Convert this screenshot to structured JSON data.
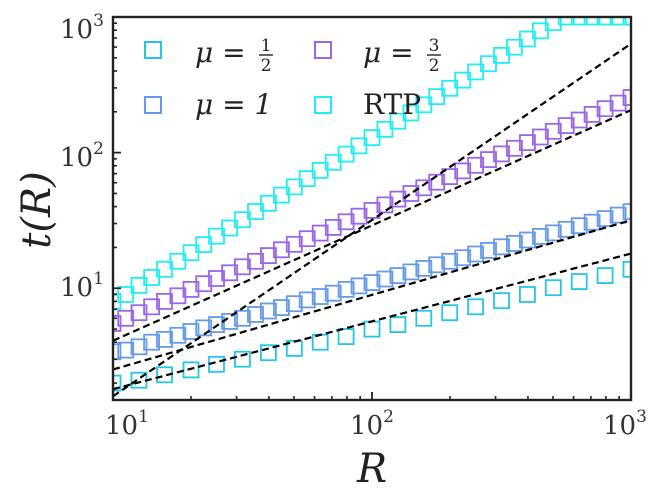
{
  "chart_data": {
    "type": "scatter",
    "xscale": "log",
    "yscale": "log",
    "xlim": [
      10,
      1000
    ],
    "ylim": [
      1.5,
      1000
    ],
    "xlabel": "R",
    "ylabel": "t(R)",
    "xticks": [
      {
        "base": "10",
        "exp": "1",
        "value": 10
      },
      {
        "base": "10",
        "exp": "2",
        "value": 100
      },
      {
        "base": "10",
        "exp": "3",
        "value": 1000
      }
    ],
    "yticks": [
      {
        "base": "10",
        "exp": "1",
        "value": 10
      },
      {
        "base": "10",
        "exp": "2",
        "value": 100
      },
      {
        "base": "10",
        "exp": "3",
        "value": 1000
      }
    ],
    "legend_position": "top-left",
    "series": [
      {
        "key": "mu-half",
        "name": "μ = 1/2",
        "legend": {
          "symbol": "μ =",
          "num": "1",
          "den": "2"
        },
        "color": "#22c7e8",
        "marker": "open-square",
        "fit_prefactor": 0.57,
        "fit_exponent": 0.5,
        "x": [
          10,
          12.6,
          15.8,
          20,
          25.1,
          31.6,
          39.8,
          50.1,
          63.1,
          79.4,
          100,
          125.9,
          158.5,
          199.5,
          251.2,
          316.2,
          398.1,
          501.2,
          631,
          794.3,
          1000
        ],
        "y": [
          2.0,
          2.1,
          2.3,
          2.5,
          2.75,
          3.0,
          3.35,
          3.6,
          4.0,
          4.4,
          5.0,
          5.4,
          6.0,
          6.6,
          7.3,
          8.1,
          9.0,
          10.1,
          11.2,
          12.4,
          13.8
        ]
      },
      {
        "key": "mu-1",
        "name": "μ = 1",
        "legend": {
          "symbol": "μ = 1"
        },
        "color": "#6699e6",
        "marker": "open-square",
        "fit_prefactor": 0.71,
        "fit_exponent": 0.55,
        "x": [
          10,
          11.2,
          12.6,
          14.1,
          15.8,
          17.8,
          20,
          22.4,
          25.1,
          28.2,
          31.6,
          35.5,
          39.8,
          44.7,
          50.1,
          56.2,
          63.1,
          70.8,
          79.4,
          89.1,
          100,
          112.2,
          125.9,
          141.3,
          158.5,
          177.8,
          199.5,
          223.9,
          251.2,
          281.8,
          316.2,
          354.8,
          398.1,
          446.7,
          501.2,
          562.3,
          631,
          707.9,
          794.3,
          891.3,
          1000
        ],
        "y": [
          3.4,
          3.5,
          3.7,
          4.0,
          4.2,
          4.5,
          4.8,
          5.1,
          5.4,
          5.7,
          6.0,
          6.4,
          6.8,
          7.2,
          7.7,
          8.2,
          8.7,
          9.2,
          9.8,
          10.4,
          11.0,
          11.7,
          12.4,
          13.2,
          14.0,
          14.9,
          15.8,
          16.8,
          17.9,
          19.0,
          20.2,
          21.4,
          22.7,
          24.1,
          25.6,
          27.2,
          28.9,
          30.7,
          32.6,
          34.6,
          36.7
        ]
      },
      {
        "key": "mu-3-2",
        "name": "μ = 3/2",
        "legend": {
          "symbol": "μ =",
          "num": "3",
          "den": "2"
        },
        "color": "#9966e6",
        "marker": "open-square",
        "fit_prefactor": 0.58,
        "fit_exponent": 0.85,
        "x": [
          10,
          11.2,
          12.6,
          14.1,
          15.8,
          17.8,
          20,
          22.4,
          25.1,
          28.2,
          31.6,
          35.5,
          39.8,
          44.7,
          50.1,
          56.2,
          63.1,
          70.8,
          79.4,
          89.1,
          100,
          112.2,
          125.9,
          141.3,
          158.5,
          177.8,
          199.5,
          223.9,
          251.2,
          281.8,
          316.2,
          354.8,
          398.1,
          446.7,
          501.2,
          562.3,
          631,
          707.9,
          794.3,
          891.3,
          1000
        ],
        "y": [
          5.5,
          6.0,
          6.6,
          7.3,
          8.0,
          8.8,
          9.8,
          10.8,
          11.8,
          13.0,
          14.4,
          15.8,
          17.4,
          19.2,
          21.1,
          23.2,
          25.5,
          28.1,
          30.9,
          34.0,
          37.5,
          41.2,
          45.4,
          50.0,
          55.0,
          60.5,
          66.6,
          73.3,
          80.7,
          88.8,
          97.8,
          107.6,
          118.5,
          130.4,
          143.6,
          158.1,
          174.0,
          191.5,
          210.8,
          232.0,
          255.0
        ]
      },
      {
        "key": "rtp",
        "name": "RTP",
        "legend": {
          "symbol": "RTP"
        },
        "color": "#22eef2",
        "marker": "open-square",
        "fit_prefactor": 0.08,
        "fit_exponent": 1.3,
        "x": [
          10,
          11.2,
          12.6,
          14.1,
          15.8,
          17.8,
          20,
          22.4,
          25.1,
          28.2,
          31.6,
          35.5,
          39.8,
          44.7,
          50.1,
          56.2,
          63.1,
          70.8,
          79.4,
          89.1,
          100,
          112.2,
          125.9,
          141.3,
          158.5,
          177.8,
          199.5,
          223.9,
          251.2,
          281.8,
          316.2,
          354.8,
          398.1,
          446.7,
          501.2,
          562.3,
          631,
          707.9,
          794.3,
          891.3,
          1000
        ],
        "y": [
          8.0,
          9.0,
          10.5,
          12.0,
          13.8,
          15.8,
          18.3,
          21.0,
          24.2,
          27.8,
          32.0,
          36.8,
          42.3,
          48.6,
          55.9,
          64.3,
          73.9,
          84.9,
          97.6,
          112.2,
          129.0,
          148.3,
          170.5,
          196.0,
          225.4,
          259.1,
          297.9,
          342.5,
          393.8,
          452.8,
          520.6,
          598.6,
          688.2,
          791.3,
          909.8,
          1000,
          1000,
          1000,
          1000,
          1000,
          1000
        ]
      }
    ]
  }
}
